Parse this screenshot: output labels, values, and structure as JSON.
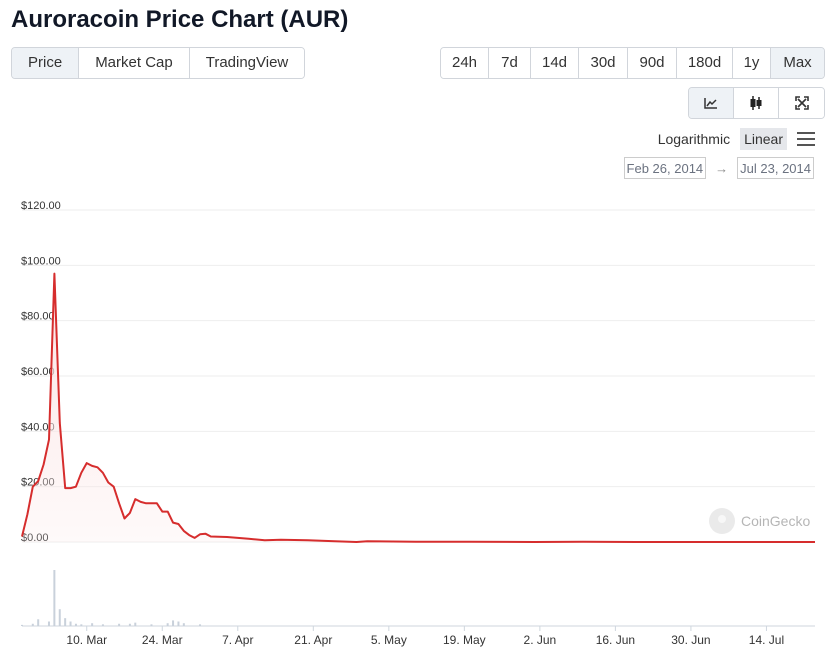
{
  "page": {
    "title": "Auroracoin Price Chart (AUR)"
  },
  "tabs": [
    {
      "label": "Price",
      "active": true
    },
    {
      "label": "Market Cap",
      "active": false
    },
    {
      "label": "TradingView",
      "active": false
    }
  ],
  "ranges": [
    {
      "label": "24h",
      "active": false
    },
    {
      "label": "7d",
      "active": false
    },
    {
      "label": "14d",
      "active": false
    },
    {
      "label": "30d",
      "active": false
    },
    {
      "label": "90d",
      "active": false
    },
    {
      "label": "180d",
      "active": false
    },
    {
      "label": "1y",
      "active": false
    },
    {
      "label": "Max",
      "active": true
    }
  ],
  "views": [
    {
      "icon": "line-chart-icon",
      "active": true
    },
    {
      "icon": "candlestick-icon",
      "active": false
    },
    {
      "icon": "expand-icon",
      "active": false
    }
  ],
  "scale": {
    "logarithmic_label": "Logarithmic",
    "linear_label": "Linear",
    "selected": "Linear",
    "menu_icon": "menu-icon"
  },
  "date_range": {
    "from": "Feb 26, 2014",
    "arrow": "→",
    "to": "Jul 23, 2014"
  },
  "watermark": {
    "text": "CoinGecko",
    "icon": "coingecko-logo-icon"
  },
  "colors": {
    "line": "#d62d2d",
    "area": "#fbe5e5",
    "volume": "#c9d1db",
    "grid": "#eeeeee",
    "active_bg": "#eef2f6"
  },
  "chart_data": {
    "type": "line",
    "title": "",
    "y_axis": {
      "min": 0,
      "max": 120,
      "ticks": [
        0,
        20,
        40,
        60,
        80,
        100,
        120
      ],
      "tick_labels": [
        "$0.00",
        "$20.00",
        "$40.00",
        "$60.00",
        "$80.00",
        "$100.00",
        "$120.00"
      ]
    },
    "x_axis": {
      "range": [
        "2014-02-26",
        "2014-07-23"
      ],
      "ticks": [
        "2014-03-10",
        "2014-03-24",
        "2014-04-07",
        "2014-04-21",
        "2014-05-05",
        "2014-05-19",
        "2014-06-02",
        "2014-06-16",
        "2014-06-30",
        "2014-07-14"
      ],
      "tick_labels": [
        "10. Mar",
        "24. Mar",
        "7. Apr",
        "21. Apr",
        "5. May",
        "19. May",
        "2. Jun",
        "16. Jun",
        "30. Jun",
        "14. Jul"
      ]
    },
    "grid": true,
    "legend": "none",
    "series": [
      {
        "name": "Price",
        "points": [
          [
            "2014-02-26",
            2.0
          ],
          [
            "2014-02-27",
            10.0
          ],
          [
            "2014-02-28",
            20.0
          ],
          [
            "2014-03-01",
            22.0
          ],
          [
            "2014-03-02",
            28.0
          ],
          [
            "2014-03-03",
            37.0
          ],
          [
            "2014-03-04",
            97.0
          ],
          [
            "2014-03-05",
            43.0
          ],
          [
            "2014-03-06",
            19.5
          ],
          [
            "2014-03-07",
            19.5
          ],
          [
            "2014-03-08",
            20.0
          ],
          [
            "2014-03-09",
            25.0
          ],
          [
            "2014-03-10",
            28.5
          ],
          [
            "2014-03-11",
            27.5
          ],
          [
            "2014-03-12",
            27.0
          ],
          [
            "2014-03-13",
            25.0
          ],
          [
            "2014-03-14",
            21.5
          ],
          [
            "2014-03-15",
            20.0
          ],
          [
            "2014-03-16",
            14.0
          ],
          [
            "2014-03-17",
            8.5
          ],
          [
            "2014-03-18",
            10.5
          ],
          [
            "2014-03-19",
            15.5
          ],
          [
            "2014-03-20",
            14.5
          ],
          [
            "2014-03-21",
            14.0
          ],
          [
            "2014-03-22",
            14.0
          ],
          [
            "2014-03-23",
            14.0
          ],
          [
            "2014-03-24",
            11.0
          ],
          [
            "2014-03-25",
            11.0
          ],
          [
            "2014-03-26",
            7.0
          ],
          [
            "2014-03-27",
            6.5
          ],
          [
            "2014-03-28",
            4.0
          ],
          [
            "2014-03-29",
            2.5
          ],
          [
            "2014-03-30",
            1.5
          ],
          [
            "2014-03-31",
            2.8
          ],
          [
            "2014-04-01",
            3.0
          ],
          [
            "2014-04-02",
            2.0
          ],
          [
            "2014-04-05",
            1.8
          ],
          [
            "2014-04-09",
            1.2
          ],
          [
            "2014-04-12",
            0.6
          ],
          [
            "2014-04-15",
            0.8
          ],
          [
            "2014-04-20",
            0.6
          ],
          [
            "2014-04-25",
            0.3
          ],
          [
            "2014-04-29",
            0.0
          ],
          [
            "2014-05-01",
            0.3
          ],
          [
            "2014-05-10",
            0.1
          ],
          [
            "2014-05-20",
            0.1
          ],
          [
            "2014-06-01",
            0.0
          ],
          [
            "2014-06-10",
            0.1
          ],
          [
            "2014-06-20",
            0.0
          ],
          [
            "2014-07-01",
            0.0
          ],
          [
            "2014-07-10",
            0.0
          ],
          [
            "2014-07-23",
            0.0
          ]
        ]
      }
    ],
    "volume": [
      [
        "2014-02-26",
        0.02
      ],
      [
        "2014-02-28",
        0.04
      ],
      [
        "2014-03-01",
        0.12
      ],
      [
        "2014-03-03",
        0.08
      ],
      [
        "2014-03-04",
        1.0
      ],
      [
        "2014-03-05",
        0.3
      ],
      [
        "2014-03-06",
        0.14
      ],
      [
        "2014-03-07",
        0.08
      ],
      [
        "2014-03-08",
        0.04
      ],
      [
        "2014-03-09",
        0.03
      ],
      [
        "2014-03-11",
        0.05
      ],
      [
        "2014-03-13",
        0.03
      ],
      [
        "2014-03-16",
        0.04
      ],
      [
        "2014-03-18",
        0.04
      ],
      [
        "2014-03-19",
        0.06
      ],
      [
        "2014-03-22",
        0.03
      ],
      [
        "2014-03-25",
        0.05
      ],
      [
        "2014-03-26",
        0.1
      ],
      [
        "2014-03-27",
        0.08
      ],
      [
        "2014-03-28",
        0.05
      ],
      [
        "2014-03-31",
        0.03
      ]
    ]
  }
}
